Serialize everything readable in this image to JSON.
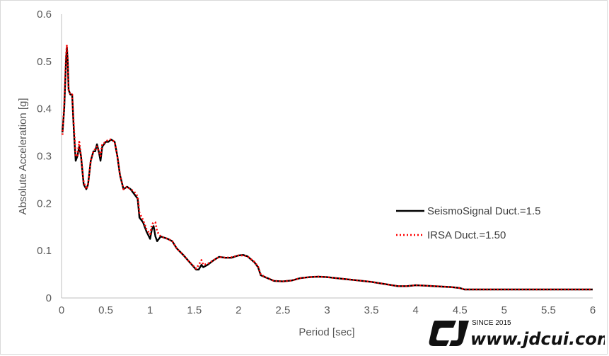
{
  "chart_data": {
    "type": "line",
    "xlabel": "Period [sec]",
    "ylabel": "Absolute Acceleration [g]",
    "xlim": [
      0,
      6
    ],
    "ylim": [
      0,
      0.6
    ],
    "x_ticks": [
      "0",
      "0.5",
      "1",
      "1.5",
      "2",
      "2.5",
      "3",
      "3.5",
      "4",
      "4.5",
      "5",
      "5.5",
      "6"
    ],
    "y_ticks": [
      "0",
      "0.1",
      "0.2",
      "0.3",
      "0.4",
      "0.5",
      "0.6"
    ],
    "grid": false,
    "legend_placement": "right",
    "series": [
      {
        "name": "SeismoSignal Duct.=1.5",
        "color": "#000000",
        "style": "solid",
        "points": [
          [
            0.01,
            0.35
          ],
          [
            0.03,
            0.4
          ],
          [
            0.05,
            0.5
          ],
          [
            0.06,
            0.53
          ],
          [
            0.07,
            0.5
          ],
          [
            0.08,
            0.44
          ],
          [
            0.1,
            0.43
          ],
          [
            0.12,
            0.43
          ],
          [
            0.14,
            0.35
          ],
          [
            0.16,
            0.29
          ],
          [
            0.18,
            0.3
          ],
          [
            0.2,
            0.32
          ],
          [
            0.22,
            0.3
          ],
          [
            0.25,
            0.24
          ],
          [
            0.28,
            0.23
          ],
          [
            0.3,
            0.24
          ],
          [
            0.33,
            0.29
          ],
          [
            0.36,
            0.31
          ],
          [
            0.38,
            0.31
          ],
          [
            0.4,
            0.325
          ],
          [
            0.42,
            0.31
          ],
          [
            0.44,
            0.29
          ],
          [
            0.46,
            0.32
          ],
          [
            0.5,
            0.33
          ],
          [
            0.53,
            0.33
          ],
          [
            0.56,
            0.335
          ],
          [
            0.6,
            0.33
          ],
          [
            0.63,
            0.3
          ],
          [
            0.66,
            0.26
          ],
          [
            0.7,
            0.23
          ],
          [
            0.74,
            0.235
          ],
          [
            0.78,
            0.23
          ],
          [
            0.82,
            0.22
          ],
          [
            0.86,
            0.21
          ],
          [
            0.88,
            0.17
          ],
          [
            0.92,
            0.16
          ],
          [
            0.96,
            0.14
          ],
          [
            1.0,
            0.125
          ],
          [
            1.02,
            0.145
          ],
          [
            1.04,
            0.152
          ],
          [
            1.06,
            0.13
          ],
          [
            1.08,
            0.12
          ],
          [
            1.12,
            0.13
          ],
          [
            1.2,
            0.125
          ],
          [
            1.25,
            0.12
          ],
          [
            1.3,
            0.105
          ],
          [
            1.38,
            0.09
          ],
          [
            1.45,
            0.075
          ],
          [
            1.52,
            0.06
          ],
          [
            1.55,
            0.06
          ],
          [
            1.58,
            0.07
          ],
          [
            1.6,
            0.065
          ],
          [
            1.65,
            0.07
          ],
          [
            1.72,
            0.08
          ],
          [
            1.78,
            0.087
          ],
          [
            1.85,
            0.085
          ],
          [
            1.92,
            0.085
          ],
          [
            2.0,
            0.09
          ],
          [
            2.05,
            0.091
          ],
          [
            2.1,
            0.088
          ],
          [
            2.18,
            0.075
          ],
          [
            2.22,
            0.065
          ],
          [
            2.25,
            0.048
          ],
          [
            2.3,
            0.044
          ],
          [
            2.4,
            0.036
          ],
          [
            2.5,
            0.035
          ],
          [
            2.6,
            0.037
          ],
          [
            2.7,
            0.042
          ],
          [
            2.8,
            0.044
          ],
          [
            2.9,
            0.045
          ],
          [
            3.0,
            0.044
          ],
          [
            3.1,
            0.042
          ],
          [
            3.2,
            0.04
          ],
          [
            3.3,
            0.038
          ],
          [
            3.4,
            0.036
          ],
          [
            3.5,
            0.034
          ],
          [
            3.6,
            0.031
          ],
          [
            3.7,
            0.028
          ],
          [
            3.8,
            0.025
          ],
          [
            3.9,
            0.025
          ],
          [
            4.0,
            0.027
          ],
          [
            4.1,
            0.026
          ],
          [
            4.2,
            0.025
          ],
          [
            4.3,
            0.024
          ],
          [
            4.4,
            0.023
          ],
          [
            4.5,
            0.021
          ],
          [
            4.55,
            0.018
          ],
          [
            4.6,
            0.018
          ],
          [
            4.7,
            0.018
          ],
          [
            5.0,
            0.018
          ],
          [
            5.5,
            0.018
          ],
          [
            6.0,
            0.018
          ]
        ]
      },
      {
        "name": "IRSA Duct.=1.50",
        "color": "#ff0000",
        "style": "dotted",
        "points": [
          [
            0.01,
            0.345
          ],
          [
            0.03,
            0.41
          ],
          [
            0.05,
            0.51
          ],
          [
            0.06,
            0.535
          ],
          [
            0.07,
            0.5
          ],
          [
            0.08,
            0.44
          ],
          [
            0.1,
            0.43
          ],
          [
            0.12,
            0.43
          ],
          [
            0.14,
            0.36
          ],
          [
            0.16,
            0.3
          ],
          [
            0.18,
            0.3
          ],
          [
            0.2,
            0.33
          ],
          [
            0.22,
            0.3
          ],
          [
            0.25,
            0.245
          ],
          [
            0.28,
            0.23
          ],
          [
            0.3,
            0.24
          ],
          [
            0.33,
            0.29
          ],
          [
            0.36,
            0.31
          ],
          [
            0.38,
            0.315
          ],
          [
            0.4,
            0.32
          ],
          [
            0.42,
            0.31
          ],
          [
            0.44,
            0.3
          ],
          [
            0.46,
            0.325
          ],
          [
            0.5,
            0.33
          ],
          [
            0.53,
            0.335
          ],
          [
            0.56,
            0.335
          ],
          [
            0.6,
            0.33
          ],
          [
            0.63,
            0.3
          ],
          [
            0.66,
            0.26
          ],
          [
            0.7,
            0.23
          ],
          [
            0.74,
            0.235
          ],
          [
            0.78,
            0.23
          ],
          [
            0.82,
            0.225
          ],
          [
            0.86,
            0.215
          ],
          [
            0.88,
            0.18
          ],
          [
            0.92,
            0.165
          ],
          [
            0.96,
            0.145
          ],
          [
            1.0,
            0.135
          ],
          [
            1.02,
            0.155
          ],
          [
            1.04,
            0.16
          ],
          [
            1.06,
            0.16
          ],
          [
            1.08,
            0.14
          ],
          [
            1.12,
            0.13
          ],
          [
            1.2,
            0.125
          ],
          [
            1.25,
            0.12
          ],
          [
            1.3,
            0.105
          ],
          [
            1.38,
            0.09
          ],
          [
            1.45,
            0.075
          ],
          [
            1.52,
            0.062
          ],
          [
            1.55,
            0.07
          ],
          [
            1.58,
            0.08
          ],
          [
            1.6,
            0.07
          ],
          [
            1.65,
            0.072
          ],
          [
            1.72,
            0.08
          ],
          [
            1.78,
            0.087
          ],
          [
            1.85,
            0.085
          ],
          [
            1.92,
            0.086
          ],
          [
            2.0,
            0.09
          ],
          [
            2.05,
            0.09
          ],
          [
            2.1,
            0.088
          ],
          [
            2.18,
            0.076
          ],
          [
            2.22,
            0.066
          ],
          [
            2.25,
            0.05
          ],
          [
            2.3,
            0.044
          ],
          [
            2.4,
            0.036
          ],
          [
            2.5,
            0.035
          ],
          [
            2.6,
            0.037
          ],
          [
            2.7,
            0.042
          ],
          [
            2.8,
            0.044
          ],
          [
            2.9,
            0.045
          ],
          [
            3.0,
            0.044
          ],
          [
            3.1,
            0.042
          ],
          [
            3.2,
            0.04
          ],
          [
            3.3,
            0.038
          ],
          [
            3.4,
            0.036
          ],
          [
            3.5,
            0.034
          ],
          [
            3.6,
            0.031
          ],
          [
            3.7,
            0.028
          ],
          [
            3.8,
            0.025
          ],
          [
            3.9,
            0.025
          ],
          [
            4.0,
            0.027
          ],
          [
            4.1,
            0.026
          ],
          [
            4.2,
            0.025
          ],
          [
            4.3,
            0.024
          ],
          [
            4.4,
            0.023
          ],
          [
            4.5,
            0.021
          ],
          [
            4.55,
            0.018
          ],
          [
            4.6,
            0.018
          ],
          [
            4.7,
            0.018
          ],
          [
            5.0,
            0.018
          ],
          [
            5.5,
            0.018
          ],
          [
            6.0,
            0.018
          ]
        ]
      }
    ]
  },
  "watermark": {
    "since": "SINCE 2015",
    "url": "www.jdcui.com",
    "logo_text": "CJ"
  }
}
